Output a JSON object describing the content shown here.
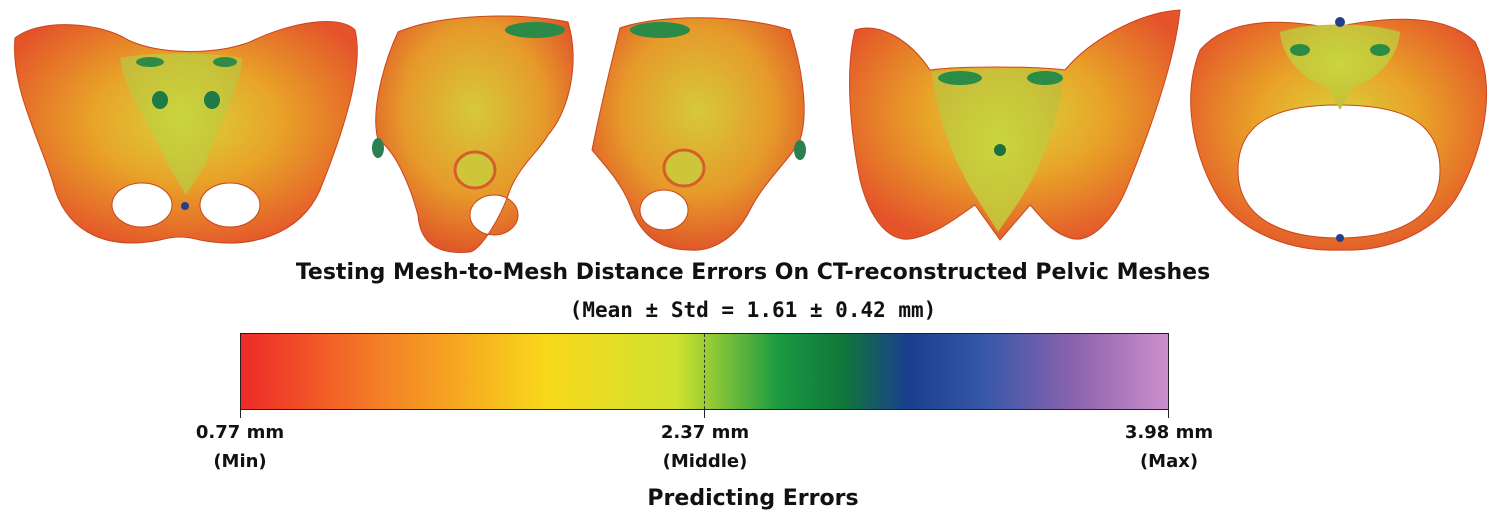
{
  "figure": {
    "title": "Testing Mesh-to-Mesh Distance Errors On CT-reconstructed Pelvic Meshes",
    "subtitle": "(Mean ± Std = 1.61 ± 0.42 mm)"
  },
  "colorbar": {
    "caption": "Predicting Errors",
    "min": {
      "value": 0.77,
      "unit": "mm",
      "label": "0.77 mm",
      "tag": "(Min)"
    },
    "middle": {
      "value": 2.37,
      "unit": "mm",
      "label": "2.37 mm",
      "tag": "(Middle)"
    },
    "max": {
      "value": 3.98,
      "unit": "mm",
      "label": "3.98 mm",
      "tag": "(Max)"
    },
    "colors": [
      "#ee2a28",
      "#f47f25",
      "#f8d81a",
      "#cfe22f",
      "#1b9a42",
      "#10763a",
      "#1a3f8f",
      "#3657a8",
      "#8c63ae",
      "#cc8fcc"
    ]
  },
  "views": [
    {
      "name": "anterior-view"
    },
    {
      "name": "right-lateral-view"
    },
    {
      "name": "left-lateral-view"
    },
    {
      "name": "posterior-view"
    },
    {
      "name": "superior-view"
    }
  ]
}
